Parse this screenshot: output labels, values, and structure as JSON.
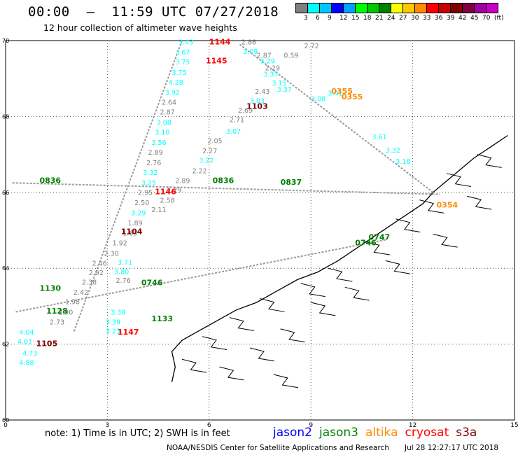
{
  "header": {
    "title": "00:00  –  11:59 UTC 07/27/2018",
    "subtitle": "12 hour collection of altimeter wave heights"
  },
  "legend": {
    "colors": [
      "#7f7f7f",
      "#00ffff",
      "#00c8ff",
      "#0000ff",
      "#00a0ff",
      "#00ff00",
      "#00c800",
      "#008000",
      "#ffff00",
      "#ffc800",
      "#ff8c00",
      "#ff0000",
      "#c80000",
      "#800000",
      "#800040",
      "#a000a0",
      "#c800c8",
      "#000000"
    ],
    "labels": [
      "3",
      "6",
      "9",
      "12",
      "15",
      "18",
      "21",
      "24",
      "27",
      "30",
      "33",
      "36",
      "39",
      "42",
      "45",
      "70"
    ],
    "unit": "(ft)"
  },
  "axes": {
    "x_ticks": [
      "0",
      "3",
      "6",
      "9",
      "12",
      "15"
    ],
    "y_ticks": [
      "70",
      "68",
      "66",
      "64",
      "62",
      "60"
    ],
    "lon_range": [
      0,
      15
    ],
    "lat_range": [
      60,
      70
    ]
  },
  "passes": [
    {
      "label": "1144",
      "color": "#ff0000",
      "lon": 6.0,
      "lat": 69.9
    },
    {
      "label": "1145",
      "color": "#ff0000",
      "lon": 5.9,
      "lat": 69.4
    },
    {
      "label": "1103",
      "color": "#800000",
      "lon": 7.1,
      "lat": 68.2
    },
    {
      "label": "0355",
      "color": "#ff8c00",
      "lon": 9.6,
      "lat": 68.6
    },
    {
      "label": "0355",
      "color": "#ff8c00",
      "lon": 9.9,
      "lat": 68.45
    },
    {
      "label": "0354",
      "color": "#ff8c00",
      "lon": 12.7,
      "lat": 65.6
    },
    {
      "label": "1146",
      "color": "#ff0000",
      "lon": 4.4,
      "lat": 65.95
    },
    {
      "label": "1104",
      "color": "#800000",
      "lon": 3.4,
      "lat": 64.9
    },
    {
      "label": "0837",
      "color": "#008000",
      "lon": 8.1,
      "lat": 66.2
    },
    {
      "label": "0836",
      "color": "#008000",
      "lon": 6.1,
      "lat": 66.25
    },
    {
      "label": "0836",
      "color": "#008000",
      "lon": 1.0,
      "lat": 66.25
    },
    {
      "label": "0746",
      "color": "#008000",
      "lon": 10.3,
      "lat": 64.6
    },
    {
      "label": "0747",
      "color": "#008000",
      "lon": 10.7,
      "lat": 64.75
    },
    {
      "label": "0746",
      "color": "#008000",
      "lon": 4.0,
      "lat": 63.55
    },
    {
      "label": "1130",
      "color": "#008000",
      "lon": 1.0,
      "lat": 63.4
    },
    {
      "label": "1128",
      "color": "#008000",
      "lon": 1.2,
      "lat": 62.8
    },
    {
      "label": "1133",
      "color": "#008000",
      "lon": 4.3,
      "lat": 62.6
    },
    {
      "label": "1147",
      "color": "#ff0000",
      "lon": 3.3,
      "lat": 62.25
    },
    {
      "label": "1105",
      "color": "#800000",
      "lon": 0.9,
      "lat": 61.95
    }
  ],
  "values": [
    {
      "v": "3.43",
      "color": "#00ffff",
      "lon": 5.1,
      "lat": 69.9
    },
    {
      "v": "3.67",
      "color": "#00ffff",
      "lon": 5.0,
      "lat": 69.63
    },
    {
      "v": "3.75",
      "color": "#00ffff",
      "lon": 5.0,
      "lat": 69.37
    },
    {
      "v": "3.75",
      "color": "#00ffff",
      "lon": 4.9,
      "lat": 69.1
    },
    {
      "v": "4.28",
      "color": "#00ffff",
      "lon": 4.8,
      "lat": 68.84
    },
    {
      "v": "3.92",
      "color": "#00ffff",
      "lon": 4.7,
      "lat": 68.57
    },
    {
      "v": "2.64",
      "color": "#7f7f7f",
      "lon": 4.6,
      "lat": 68.31
    },
    {
      "v": "2.87",
      "color": "#7f7f7f",
      "lon": 4.55,
      "lat": 68.05
    },
    {
      "v": "3.08",
      "color": "#00ffff",
      "lon": 4.45,
      "lat": 67.78
    },
    {
      "v": "3.10",
      "color": "#00ffff",
      "lon": 4.4,
      "lat": 67.52
    },
    {
      "v": "3.56",
      "color": "#00ffff",
      "lon": 4.3,
      "lat": 67.25
    },
    {
      "v": "2.89",
      "color": "#7f7f7f",
      "lon": 4.2,
      "lat": 66.99
    },
    {
      "v": "2.76",
      "color": "#7f7f7f",
      "lon": 4.15,
      "lat": 66.72
    },
    {
      "v": "3.32",
      "color": "#00ffff",
      "lon": 4.05,
      "lat": 66.46
    },
    {
      "v": "3.25",
      "color": "#00ffff",
      "lon": 4.0,
      "lat": 66.19
    },
    {
      "v": "2.95",
      "color": "#7f7f7f",
      "lon": 3.9,
      "lat": 65.93
    },
    {
      "v": "2.50",
      "color": "#7f7f7f",
      "lon": 3.8,
      "lat": 65.66
    },
    {
      "v": "3.29",
      "color": "#00ffff",
      "lon": 3.7,
      "lat": 65.4
    },
    {
      "v": "1.89",
      "color": "#7f7f7f",
      "lon": 3.6,
      "lat": 65.13
    },
    {
      "v": "1.63",
      "color": "#7f7f7f",
      "lon": 3.45,
      "lat": 64.86
    },
    {
      "v": "1.92",
      "color": "#7f7f7f",
      "lon": 3.15,
      "lat": 64.6
    },
    {
      "v": "2.30",
      "color": "#7f7f7f",
      "lon": 2.9,
      "lat": 64.33
    },
    {
      "v": "2.46",
      "color": "#7f7f7f",
      "lon": 2.55,
      "lat": 64.07
    },
    {
      "v": "2.92",
      "color": "#7f7f7f",
      "lon": 2.45,
      "lat": 63.82
    },
    {
      "v": "2.38",
      "color": "#7f7f7f",
      "lon": 2.25,
      "lat": 63.57
    },
    {
      "v": "2.42",
      "color": "#7f7f7f",
      "lon": 2.0,
      "lat": 63.3
    },
    {
      "v": "1.98",
      "color": "#7f7f7f",
      "lon": 1.75,
      "lat": 63.05
    },
    {
      "v": "2.90",
      "color": "#7f7f7f",
      "lon": 1.55,
      "lat": 62.78
    },
    {
      "v": "2.73",
      "color": "#7f7f7f",
      "lon": 1.3,
      "lat": 62.52
    },
    {
      "v": "4.04",
      "color": "#00ffff",
      "lon": 0.4,
      "lat": 62.25
    },
    {
      "v": "4.01",
      "color": "#00ffff",
      "lon": 0.35,
      "lat": 62.0
    },
    {
      "v": "4.73",
      "color": "#00ffff",
      "lon": 0.5,
      "lat": 61.7
    },
    {
      "v": "4.88",
      "color": "#00ffff",
      "lon": 0.4,
      "lat": 61.45
    },
    {
      "v": "2.86",
      "color": "#7f7f7f",
      "lon": 6.95,
      "lat": 69.9
    },
    {
      "v": "2.72",
      "color": "#7f7f7f",
      "lon": 8.8,
      "lat": 69.8
    },
    {
      "v": "3.09",
      "color": "#00ffff",
      "lon": 7.0,
      "lat": 69.65
    },
    {
      "v": "2.87",
      "color": "#7f7f7f",
      "lon": 7.4,
      "lat": 69.55
    },
    {
      "v": "0.59",
      "color": "#7f7f7f",
      "lon": 8.2,
      "lat": 69.55
    },
    {
      "v": "3.29",
      "color": "#00ffff",
      "lon": 7.5,
      "lat": 69.4
    },
    {
      "v": "2.29",
      "color": "#7f7f7f",
      "lon": 7.65,
      "lat": 69.22
    },
    {
      "v": "3.37",
      "color": "#00ffff",
      "lon": 7.6,
      "lat": 69.05
    },
    {
      "v": "3.15",
      "color": "#00ffff",
      "lon": 7.85,
      "lat": 68.82
    },
    {
      "v": "3.37",
      "color": "#00ffff",
      "lon": 8.0,
      "lat": 68.65
    },
    {
      "v": "2.43",
      "color": "#7f7f7f",
      "lon": 7.35,
      "lat": 68.6
    },
    {
      "v": "3.03",
      "color": "#00ffff",
      "lon": 7.2,
      "lat": 68.35
    },
    {
      "v": "2.69",
      "color": "#7f7f7f",
      "lon": 6.85,
      "lat": 68.1
    },
    {
      "v": "2.71",
      "color": "#7f7f7f",
      "lon": 6.6,
      "lat": 67.85
    },
    {
      "v": "3.07",
      "color": "#00ffff",
      "lon": 6.5,
      "lat": 67.55
    },
    {
      "v": "2.05",
      "color": "#7f7f7f",
      "lon": 5.95,
      "lat": 67.3
    },
    {
      "v": "2.27",
      "color": "#7f7f7f",
      "lon": 5.8,
      "lat": 67.03
    },
    {
      "v": "3.22",
      "color": "#00ffff",
      "lon": 5.7,
      "lat": 66.78
    },
    {
      "v": "2.22",
      "color": "#7f7f7f",
      "lon": 5.5,
      "lat": 66.5
    },
    {
      "v": "2.89",
      "color": "#7f7f7f",
      "lon": 5.0,
      "lat": 66.25
    },
    {
      "v": "2.29",
      "color": "#7f7f7f",
      "lon": 4.75,
      "lat": 66.0
    },
    {
      "v": "2.58",
      "color": "#7f7f7f",
      "lon": 4.55,
      "lat": 65.73
    },
    {
      "v": "2.11",
      "color": "#7f7f7f",
      "lon": 4.3,
      "lat": 65.48
    },
    {
      "v": "3.80",
      "color": "#00ffff",
      "lon": 3.2,
      "lat": 63.85
    },
    {
      "v": "3.71",
      "color": "#00ffff",
      "lon": 3.3,
      "lat": 64.1
    },
    {
      "v": "2.76",
      "color": "#7f7f7f",
      "lon": 3.25,
      "lat": 63.62
    },
    {
      "v": "3.38",
      "color": "#00ffff",
      "lon": 3.1,
      "lat": 62.78
    },
    {
      "v": "3.39",
      "color": "#00ffff",
      "lon": 2.95,
      "lat": 62.52
    },
    {
      "v": "3.23",
      "color": "#00ffff",
      "lon": 2.95,
      "lat": 62.28
    },
    {
      "v": "3.41",
      "color": "#00ffff",
      "lon": 9.5,
      "lat": 68.55
    },
    {
      "v": "3.08",
      "color": "#00ffff",
      "lon": 9.0,
      "lat": 68.4
    },
    {
      "v": "3.61",
      "color": "#00ffff",
      "lon": 10.8,
      "lat": 67.4
    },
    {
      "v": "3.32",
      "color": "#00ffff",
      "lon": 11.2,
      "lat": 67.05
    },
    {
      "v": "3.18",
      "color": "#00ffff",
      "lon": 11.5,
      "lat": 66.75
    }
  ],
  "note": "note:  1) Time is in UTC;  2) SWH is in feet",
  "satellites": [
    {
      "name": "jason2",
      "color": "#0000ff"
    },
    {
      "name": "jason3",
      "color": "#008000"
    },
    {
      "name": "altika",
      "color": "#ff8c00"
    },
    {
      "name": "cryosat",
      "color": "#ff0000"
    },
    {
      "name": "s3a",
      "color": "#800000"
    }
  ],
  "credit": "NOAA/NESDIS Center for Satellite Applications and Research",
  "generated": "Jul 28 12:27:17 UTC 2018"
}
